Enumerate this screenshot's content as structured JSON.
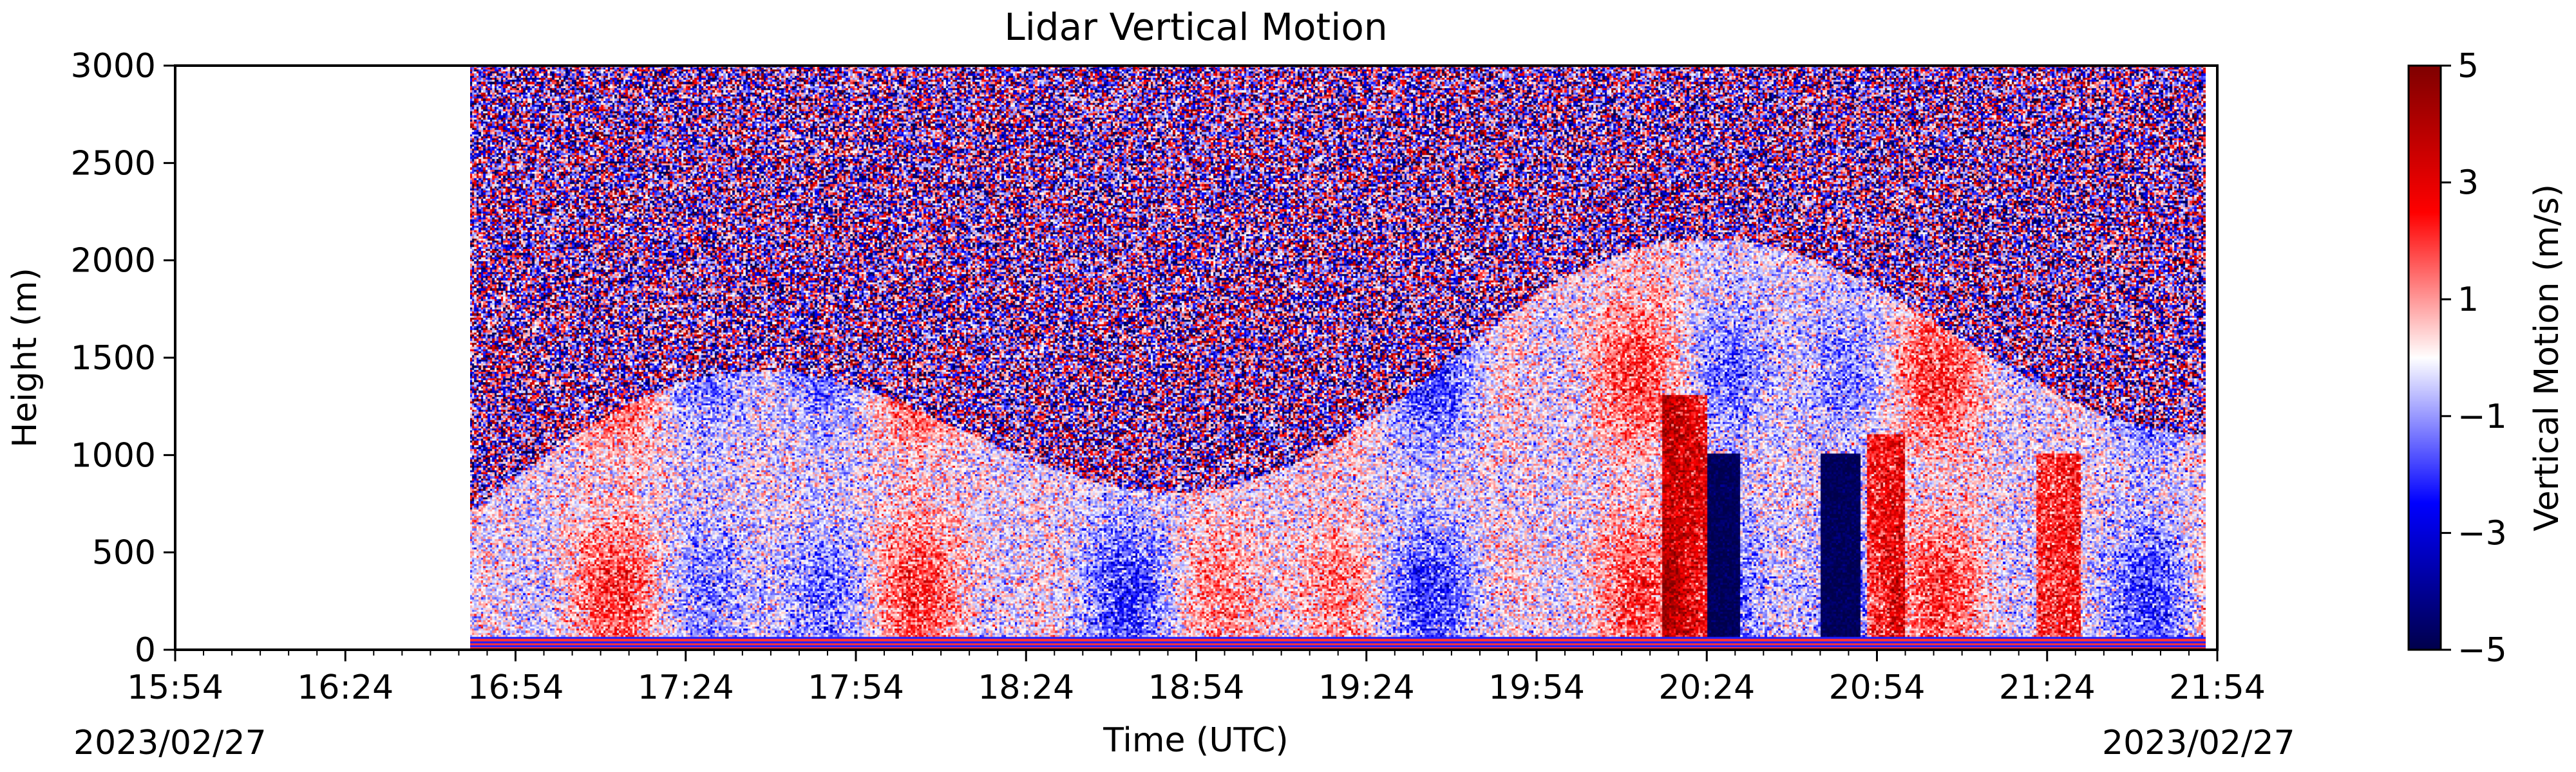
{
  "chart_data": {
    "type": "heatmap",
    "title": "Lidar Vertical Motion",
    "xlabel": "Time (UTC)",
    "ylabel": "Height (m)",
    "colorbar_label": "Vertical Motion (m/s)",
    "colormap": "seismic",
    "x_tick_labels": [
      "15:54",
      "16:24",
      "16:54",
      "17:24",
      "17:54",
      "18:24",
      "18:54",
      "19:24",
      "19:54",
      "20:24",
      "20:54",
      "21:24",
      "21:54"
    ],
    "x_tick_minutes": [
      0,
      30,
      60,
      90,
      120,
      150,
      180,
      210,
      240,
      270,
      300,
      330,
      360
    ],
    "xlim_minutes": [
      0,
      360
    ],
    "data_start_minutes": 52,
    "data_end_minutes": 358,
    "date_left": "2023/02/27",
    "date_right": "2023/02/27",
    "y_ticks": [
      0,
      500,
      1000,
      1500,
      2000,
      2500,
      3000
    ],
    "ylim": [
      0,
      3000
    ],
    "colorbar_ticks": [
      5,
      3,
      1,
      -1,
      -3,
      -5
    ],
    "colorbar_tick_labels": [
      "5",
      "3",
      "1",
      "−1",
      "−3",
      "−5"
    ],
    "clim": [
      -5,
      5
    ],
    "grid": false,
    "colors": {
      "negative_extreme": "#00004c",
      "negative": "#0000ff",
      "zero": "#ffffff",
      "positive": "#ff0000",
      "positive_extreme": "#800000"
    }
  }
}
